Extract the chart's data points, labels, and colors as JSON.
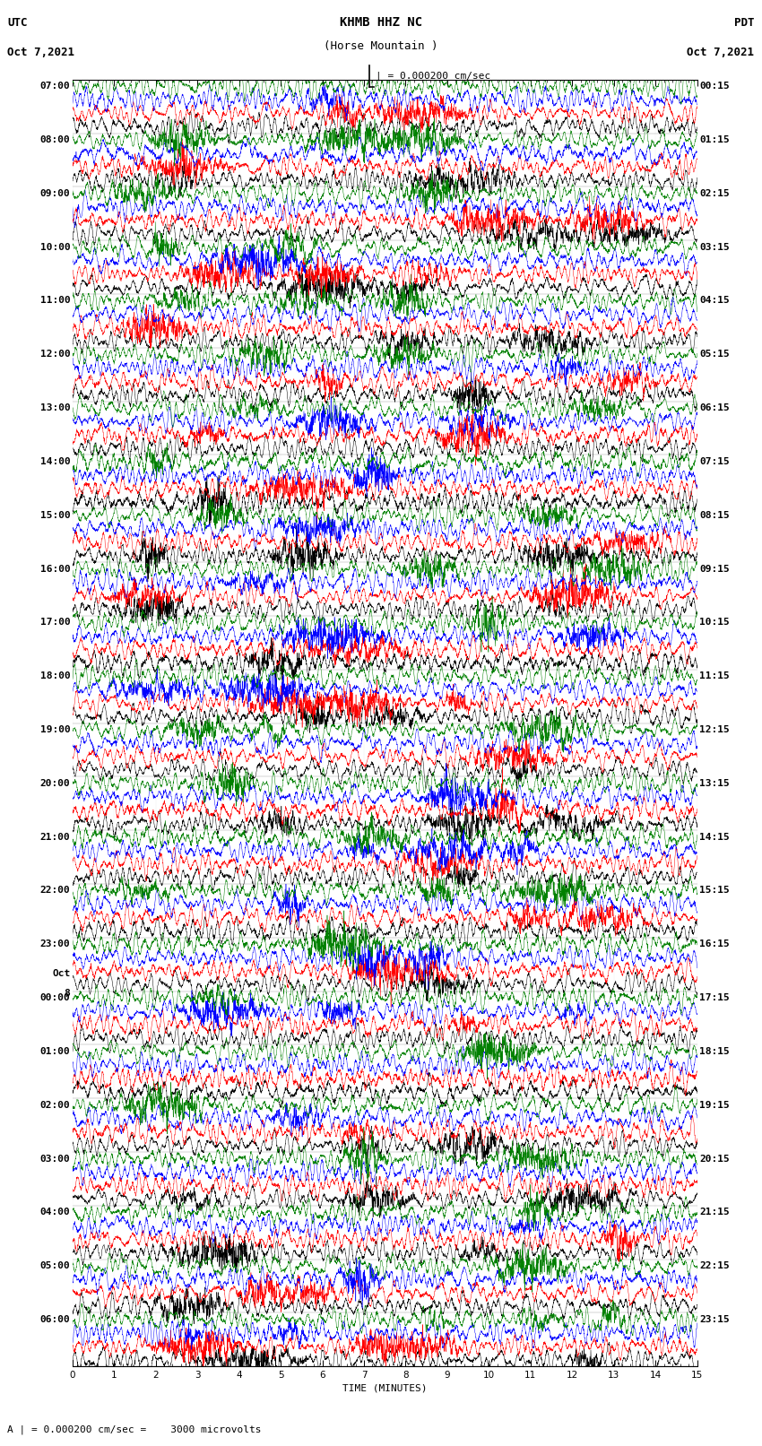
{
  "title_line1": "KHMB HHZ NC",
  "title_line2": "(Horse Mountain )",
  "title_line3": "| = 0.000200 cm/sec",
  "label_utc": "UTC",
  "label_date_left": "Oct 7,2021",
  "label_pdt": "PDT",
  "label_date_right": "Oct 7,2021",
  "xlabel": "TIME (MINUTES)",
  "footer": "A | = 0.000200 cm/sec =    3000 microvolts",
  "bg_color": "#ffffff",
  "trace_colors": [
    "#000000",
    "#ff0000",
    "#0000ff",
    "#008000"
  ],
  "num_rows": 24,
  "minutes_per_row": 15,
  "traces_per_row": 4,
  "left_label_hours": [
    "07:00",
    "08:00",
    "09:00",
    "10:00",
    "11:00",
    "12:00",
    "13:00",
    "14:00",
    "15:00",
    "16:00",
    "17:00",
    "18:00",
    "19:00",
    "20:00",
    "21:00",
    "22:00",
    "23:00",
    "00:00",
    "01:00",
    "02:00",
    "03:00",
    "04:00",
    "05:00",
    "06:00"
  ],
  "right_label_hours": [
    "00:15",
    "01:15",
    "02:15",
    "03:15",
    "04:15",
    "05:15",
    "06:15",
    "07:15",
    "08:15",
    "09:15",
    "10:15",
    "11:15",
    "12:15",
    "13:15",
    "14:15",
    "15:15",
    "16:15",
    "17:15",
    "18:15",
    "19:15",
    "20:15",
    "21:15",
    "22:15",
    "23:15"
  ],
  "oct_label_row": 17,
  "fig_width": 8.5,
  "fig_height": 16.13,
  "dpi": 100
}
